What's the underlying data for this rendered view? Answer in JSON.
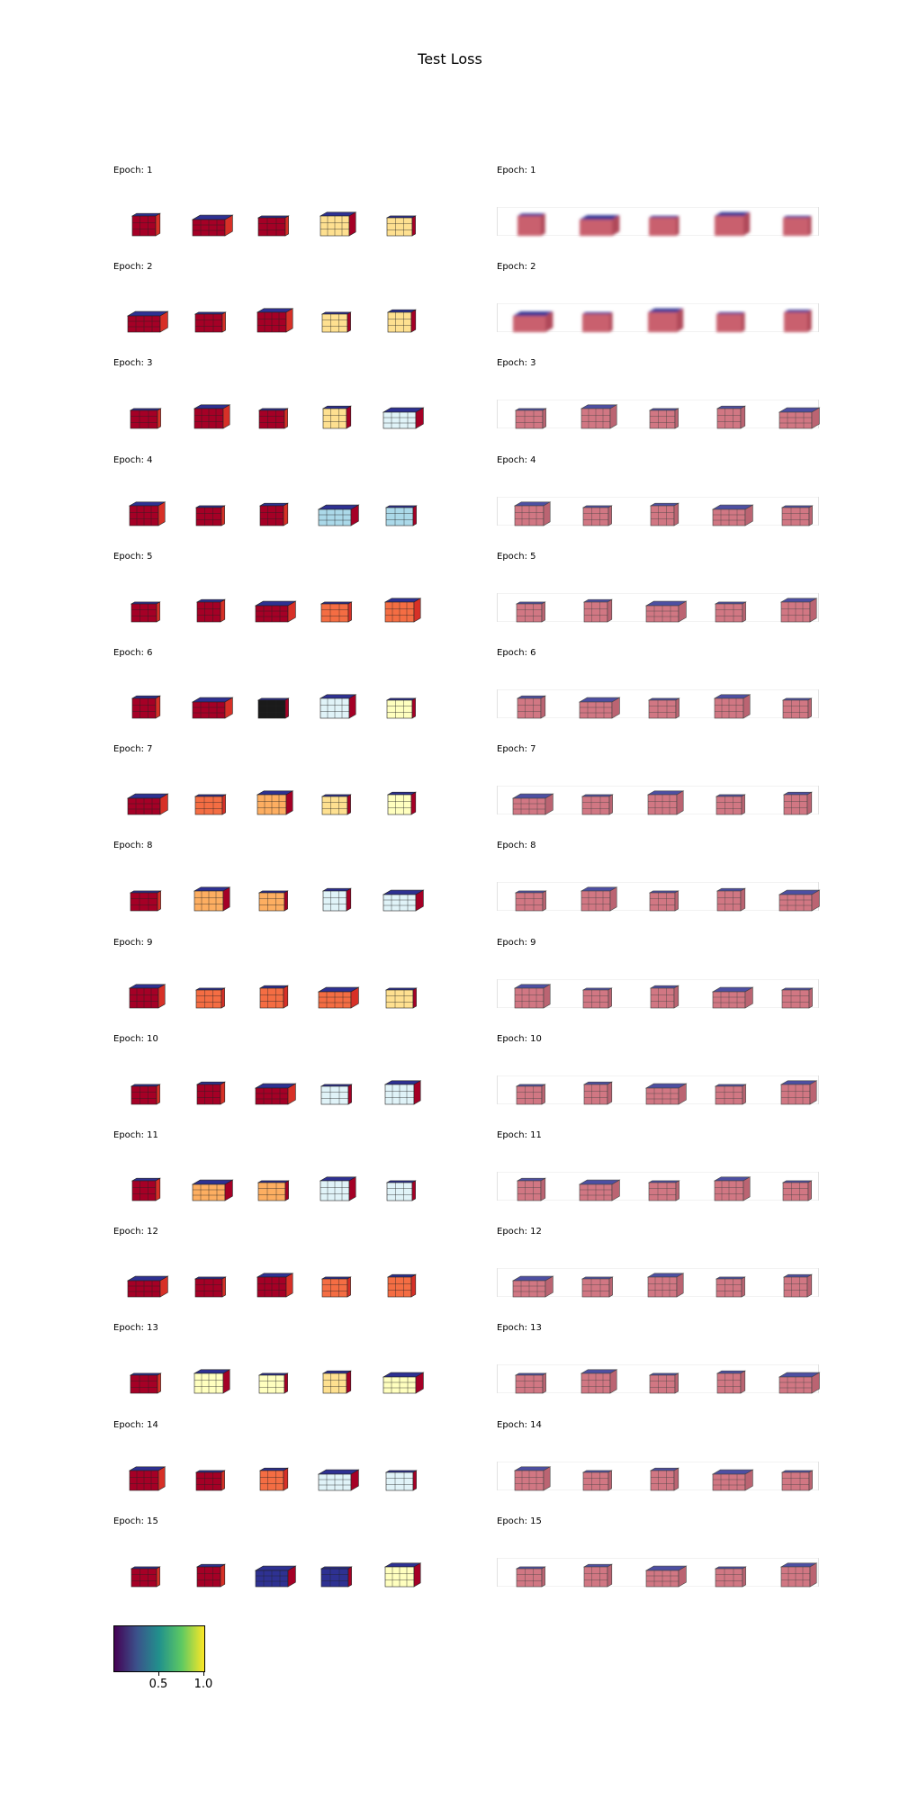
{
  "title": "Test Loss",
  "colorbar": {
    "colormap": "viridis",
    "ticks": [
      0.5,
      1.0
    ],
    "tick_labels": [
      "0.5",
      "1.0"
    ]
  },
  "colors": {
    "top": "#2e3192",
    "side_dark": "#a50026",
    "side_red": "#d73027",
    "orange": "#f46d43",
    "light_orange": "#fdae61",
    "cream": "#fee090",
    "pale_yellow": "#ffffbf",
    "pale_blue": "#e0f3f8",
    "light_blue": "#abd9e9",
    "black": "#1a1a1a",
    "ghost": "#c9606e"
  },
  "chart_data": {
    "type": "voxel-grid",
    "title": "Test Loss",
    "columns": [
      "left",
      "right"
    ],
    "rows": [
      {
        "label": "Epoch: 1",
        "left": [
          "red",
          "red",
          "red",
          "cream",
          "cream"
        ],
        "right": [
          "blur",
          "blur",
          "blur",
          "blur",
          "blur"
        ]
      },
      {
        "label": "Epoch: 2",
        "left": [
          "red",
          "red",
          "red",
          "cream",
          "cream"
        ],
        "right": [
          "blur",
          "blur",
          "blur",
          "blur",
          "blur"
        ]
      },
      {
        "label": "Epoch: 3",
        "left": [
          "red",
          "red",
          "red",
          "cream",
          "pale_blue"
        ],
        "right": [
          "ghost",
          "ghost",
          "ghost",
          "ghost",
          "ghost"
        ]
      },
      {
        "label": "Epoch: 4",
        "left": [
          "red",
          "red",
          "red",
          "light_blue",
          "light_blue"
        ],
        "right": [
          "ghost",
          "ghost",
          "ghost",
          "ghost",
          "ghost"
        ]
      },
      {
        "label": "Epoch: 5",
        "left": [
          "red",
          "red",
          "red",
          "orange",
          "orange"
        ],
        "right": [
          "ghost",
          "ghost",
          "ghost",
          "ghost",
          "ghost"
        ]
      },
      {
        "label": "Epoch: 6",
        "left": [
          "red",
          "red",
          "black",
          "pale_blue",
          "pale_yellow"
        ],
        "right": [
          "ghost",
          "ghost",
          "ghost",
          "ghost",
          "ghost"
        ]
      },
      {
        "label": "Epoch: 7",
        "left": [
          "red",
          "orange",
          "light_orange",
          "cream",
          "pale_yellow"
        ],
        "right": [
          "ghost",
          "ghost",
          "ghost",
          "ghost",
          "ghost"
        ]
      },
      {
        "label": "Epoch: 8",
        "left": [
          "red",
          "light_orange",
          "light_orange",
          "pale_blue",
          "pale_blue"
        ],
        "right": [
          "ghost",
          "ghost",
          "ghost",
          "ghost",
          "ghost"
        ]
      },
      {
        "label": "Epoch: 9",
        "left": [
          "red",
          "orange",
          "orange",
          "orange",
          "cream"
        ],
        "right": [
          "ghost",
          "ghost",
          "ghost",
          "ghost",
          "ghost"
        ]
      },
      {
        "label": "Epoch: 10",
        "left": [
          "red",
          "red",
          "red",
          "pale_blue",
          "pale_blue"
        ],
        "right": [
          "ghost",
          "ghost",
          "ghost",
          "ghost",
          "ghost"
        ]
      },
      {
        "label": "Epoch: 11",
        "left": [
          "red",
          "light_orange",
          "light_orange",
          "pale_blue",
          "pale_blue"
        ],
        "right": [
          "ghost",
          "ghost",
          "ghost",
          "ghost",
          "ghost"
        ]
      },
      {
        "label": "Epoch: 12",
        "left": [
          "red",
          "red",
          "red",
          "orange",
          "orange"
        ],
        "right": [
          "ghost",
          "ghost",
          "ghost",
          "ghost",
          "ghost"
        ]
      },
      {
        "label": "Epoch: 13",
        "left": [
          "red",
          "pale_yellow",
          "pale_yellow",
          "cream",
          "pale_yellow"
        ],
        "right": [
          "ghost",
          "ghost",
          "ghost",
          "ghost",
          "ghost"
        ]
      },
      {
        "label": "Epoch: 14",
        "left": [
          "red",
          "red",
          "orange",
          "pale_blue",
          "pale_blue"
        ],
        "right": [
          "ghost",
          "ghost",
          "ghost",
          "ghost",
          "ghost"
        ]
      },
      {
        "label": "Epoch: 15",
        "left": [
          "red",
          "red",
          "top",
          "top",
          "pale_yellow"
        ],
        "right": [
          "ghost",
          "ghost",
          "ghost",
          "ghost",
          "ghost"
        ]
      }
    ]
  }
}
